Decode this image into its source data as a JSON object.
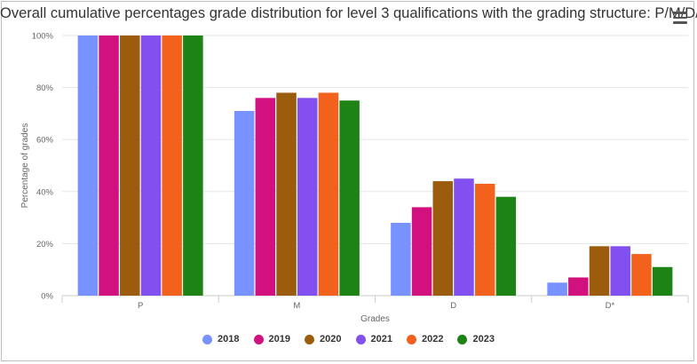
{
  "chart_data": {
    "type": "bar",
    "title": "Overall cumulative percentages grade distribution for level 3 qualifications with the grading structure: P/M/D/D*",
    "xlabel": "Grades",
    "ylabel": "Percentage of grades",
    "categories": [
      "P",
      "M",
      "D",
      "D*"
    ],
    "ylim": [
      0,
      100
    ],
    "yticks": [
      "0%",
      "20%",
      "40%",
      "60%",
      "80%",
      "100%"
    ],
    "grid": true,
    "legend_position": "bottom",
    "series": [
      {
        "name": "2018",
        "color": "#7892ff",
        "values": [
          100,
          71,
          28,
          5
        ]
      },
      {
        "name": "2019",
        "color": "#d1127e",
        "values": [
          100,
          76,
          34,
          7
        ]
      },
      {
        "name": "2020",
        "color": "#9c5c0e",
        "values": [
          100,
          78,
          44,
          19
        ]
      },
      {
        "name": "2021",
        "color": "#8150ee",
        "values": [
          100,
          76,
          45,
          19
        ]
      },
      {
        "name": "2022",
        "color": "#f3621c",
        "values": [
          100,
          78,
          43,
          16
        ]
      },
      {
        "name": "2023",
        "color": "#1d8314",
        "values": [
          100,
          75,
          38,
          11
        ]
      }
    ]
  }
}
